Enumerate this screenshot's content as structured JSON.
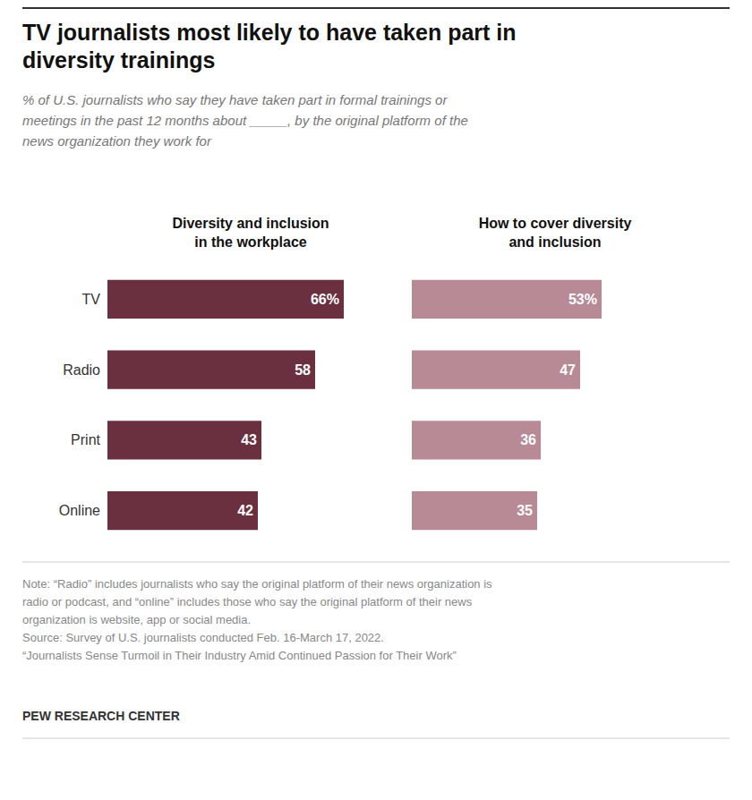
{
  "chart_data": {
    "type": "bar",
    "orientation": "horizontal",
    "title": "TV journalists most likely to have taken part in\ndiversity trainings",
    "subtitle": "% of U.S. journalists who say they have taken part in formal trainings or\nmeetings in the past 12 months about _____, by the original platform of the\nnews organization they work for",
    "categories": [
      "TV",
      "Radio",
      "Print",
      "Online"
    ],
    "series": [
      {
        "name": "Diversity and inclusion\nin the workplace",
        "color": "#6b3040",
        "values": [
          66,
          58,
          43,
          42
        ],
        "value_labels": [
          "66%",
          "58",
          "43",
          "42"
        ]
      },
      {
        "name": "How to cover diversity\nand inclusion",
        "color": "#b88a96",
        "values": [
          53,
          47,
          36,
          35
        ],
        "value_labels": [
          "53%",
          "47",
          "36",
          "35"
        ]
      }
    ],
    "xlim": [
      0,
      80
    ],
    "grid": false,
    "data_labels": true,
    "tick_labels": "y",
    "annotations": [
      "Note: “Radio” includes journalists who say the original platform of their news organization is\nradio or podcast, and “online” includes those who say the original platform of their news\norganization is website, app or social media.\nSource: Survey of U.S. journalists conducted Feb. 16-March 17, 2022.\n“Journalists Sense Turmoil in Their Industry Amid Continued Passion for Their Work”",
      "PEW RESEARCH CENTER"
    ]
  }
}
